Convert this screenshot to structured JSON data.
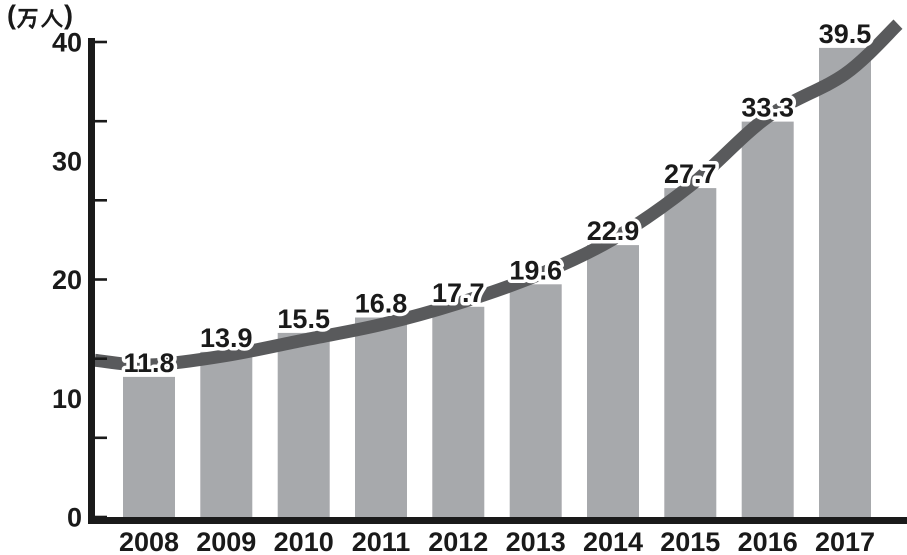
{
  "chart_data": {
    "type": "bar",
    "title": "",
    "unit_label": "(万人)",
    "unit_paren_open": "(",
    "unit_paren_close": ")",
    "categories": [
      "2008",
      "2009",
      "2010",
      "2011",
      "2012",
      "2013",
      "2014",
      "2015",
      "2016",
      "2017"
    ],
    "series": [
      {
        "name": "annual-count-bars",
        "type": "bar",
        "values": [
          11.8,
          13.9,
          15.5,
          16.8,
          17.7,
          19.6,
          22.9,
          27.7,
          33.3,
          39.5
        ]
      },
      {
        "name": "trend-curve",
        "type": "line",
        "values_at_categories": [
          12.8,
          13.6,
          14.9,
          16.2,
          18.0,
          20.3,
          23.4,
          27.9,
          33.7,
          37.3
        ],
        "start_value": 13.2,
        "end_value": 41.5
      }
    ],
    "data_labels": [
      "11.8",
      "13.9",
      "15.5",
      "16.8",
      "17.7",
      "19.6",
      "22.9",
      "27.7",
      "33.3",
      "39.5"
    ],
    "y_axis": {
      "tick_labels": [
        "40",
        "30",
        "20",
        "10",
        "0"
      ],
      "tick_values": [
        40,
        30,
        20,
        10,
        0
      ],
      "ylim": [
        0,
        40
      ],
      "even_tick_count": 7
    },
    "x_axis": {
      "labels": [
        "2008",
        "2009",
        "2010",
        "2011",
        "2012",
        "2013",
        "2014",
        "2015",
        "2016",
        "2017"
      ]
    },
    "legend": null,
    "grid": false
  },
  "colors": {
    "bar": "#a7a9ac",
    "curve": "#595a5c",
    "text": "#1a1a1a",
    "axis": "#1a1a1a",
    "halo": "#ffffff",
    "background": "#ffffff"
  }
}
